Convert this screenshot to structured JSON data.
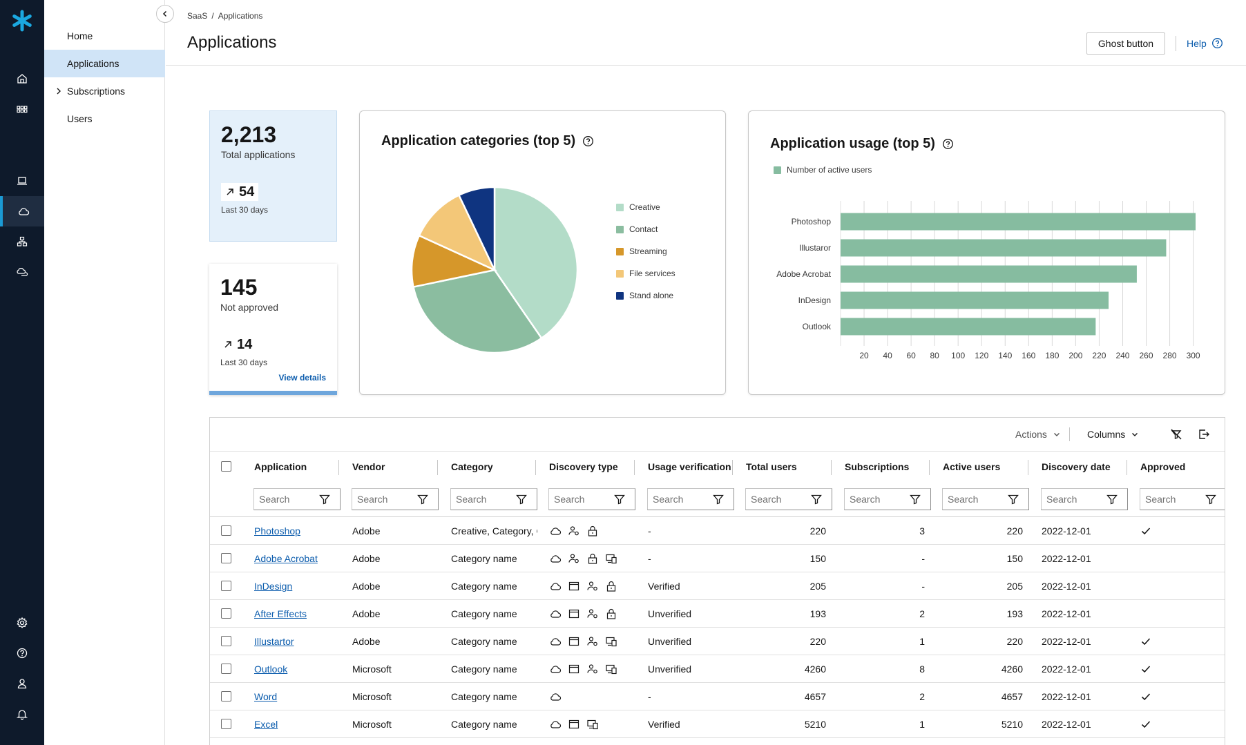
{
  "nav": {
    "items": [
      {
        "label": "Home",
        "active": false
      },
      {
        "label": "Applications",
        "active": true
      },
      {
        "label": "Subscriptions",
        "active": false,
        "expandable": true
      },
      {
        "label": "Users",
        "active": false
      }
    ]
  },
  "rail_icons": [
    "asterisk-logo-icon",
    "home-icon",
    "apps-grid-icon",
    "laptop-icon",
    "cloud-icon",
    "network-icon",
    "cloud-connect-icon",
    "settings-icon",
    "help-icon",
    "user-icon",
    "notification-icon"
  ],
  "header": {
    "breadcrumb": [
      "SaaS",
      "Applications"
    ],
    "breadcrumb_sep": "/",
    "title": "Applications",
    "ghost_button": "Ghost button",
    "help_label": "Help"
  },
  "stats": {
    "total": {
      "value": "2,213",
      "label": "Total applications",
      "delta": "54",
      "period": "Last 30 days"
    },
    "not_approved": {
      "value": "145",
      "label": "Not approved",
      "delta": "14",
      "period": "Last 30 days",
      "link": "View details"
    }
  },
  "pie_card": {
    "title": "Application categories (top 5)"
  },
  "bar_card": {
    "title": "Application usage (top 5)",
    "legend": "Number of active users"
  },
  "chart_data": [
    {
      "type": "pie",
      "title": "Application categories (top 5)",
      "categories": [
        "Creative",
        "Contact",
        "Streaming",
        "File services",
        "Stand alone"
      ],
      "values": [
        40,
        31,
        10,
        11,
        7
      ],
      "colors": [
        "#b3dcc8",
        "#8bbda0",
        "#d6972a",
        "#f3c778",
        "#0f3480"
      ],
      "legend_position": "right"
    },
    {
      "type": "bar",
      "orientation": "horizontal",
      "title": "Application usage (top 5)",
      "categories": [
        "Photoshop",
        "Illustaror",
        "Adobe Acrobat",
        "InDesign",
        "Outlook"
      ],
      "series": [
        {
          "name": "Number of active users",
          "values": [
            302,
            277,
            252,
            228,
            217
          ]
        }
      ],
      "xticks": [
        20,
        40,
        60,
        80,
        100,
        120,
        140,
        160,
        180,
        200,
        220,
        240,
        260,
        280,
        300
      ],
      "xlim": [
        0,
        305
      ],
      "grid": true,
      "color": "#86bca0",
      "legend_position": "top-left"
    }
  ],
  "table": {
    "toolbar": {
      "actions": "Actions",
      "columns": "Columns"
    },
    "columns": [
      "Application",
      "Vendor",
      "Category",
      "Discovery type",
      "Usage verification",
      "Total users",
      "Subscriptions",
      "Active users",
      "Discovery date",
      "Approved"
    ],
    "filter_placeholder": "Search",
    "rows": [
      {
        "app": "Photoshop",
        "vendor": "Adobe",
        "category": "Creative, Category, C",
        "discovery": [
          "cloud-icon",
          "user-settings-icon",
          "lock-icon"
        ],
        "verification": "-",
        "total": "220",
        "subs": "3",
        "active": "220",
        "date": "2022-12-01",
        "approved": true
      },
      {
        "app": "Adobe Acrobat",
        "vendor": "Adobe",
        "category": "Category name",
        "discovery": [
          "cloud-icon",
          "user-settings-icon",
          "lock-icon",
          "devices-icon"
        ],
        "verification": "-",
        "total": "150",
        "subs": "-",
        "active": "150",
        "date": "2022-12-01",
        "approved": false
      },
      {
        "app": "InDesign",
        "vendor": "Adobe",
        "category": "Category name",
        "discovery": [
          "cloud-icon",
          "browser-icon",
          "user-settings-icon",
          "lock-icon"
        ],
        "verification": "Verified",
        "total": "205",
        "subs": "-",
        "active": "205",
        "date": "2022-12-01",
        "approved": false
      },
      {
        "app": "After Effects",
        "vendor": "Adobe",
        "category": "Category name",
        "discovery": [
          "cloud-icon",
          "browser-icon",
          "user-settings-icon",
          "lock-icon"
        ],
        "verification": "Unverified",
        "total": "193",
        "subs": "2",
        "active": "193",
        "date": "2022-12-01",
        "approved": false
      },
      {
        "app": "Illustartor",
        "vendor": "Adobe",
        "category": "Category name",
        "discovery": [
          "cloud-icon",
          "browser-icon",
          "user-settings-icon",
          "devices-icon"
        ],
        "verification": "Unverified",
        "total": "220",
        "subs": "1",
        "active": "220",
        "date": "2022-12-01",
        "approved": true
      },
      {
        "app": "Outlook",
        "vendor": "Microsoft",
        "category": "Category name",
        "discovery": [
          "cloud-icon",
          "browser-icon",
          "user-settings-icon",
          "devices-icon"
        ],
        "verification": "Unverified",
        "total": "4260",
        "subs": "8",
        "active": "4260",
        "date": "2022-12-01",
        "approved": true
      },
      {
        "app": "Word",
        "vendor": "Microsoft",
        "category": "Category name",
        "discovery": [
          "cloud-icon"
        ],
        "verification": "-",
        "total": "4657",
        "subs": "2",
        "active": "4657",
        "date": "2022-12-01",
        "approved": true
      },
      {
        "app": "Excel",
        "vendor": "Microsoft",
        "category": "Category name",
        "discovery": [
          "cloud-icon",
          "browser-icon",
          "devices-icon"
        ],
        "verification": "Verified",
        "total": "5210",
        "subs": "1",
        "active": "5210",
        "date": "2022-12-01",
        "approved": true
      }
    ]
  }
}
